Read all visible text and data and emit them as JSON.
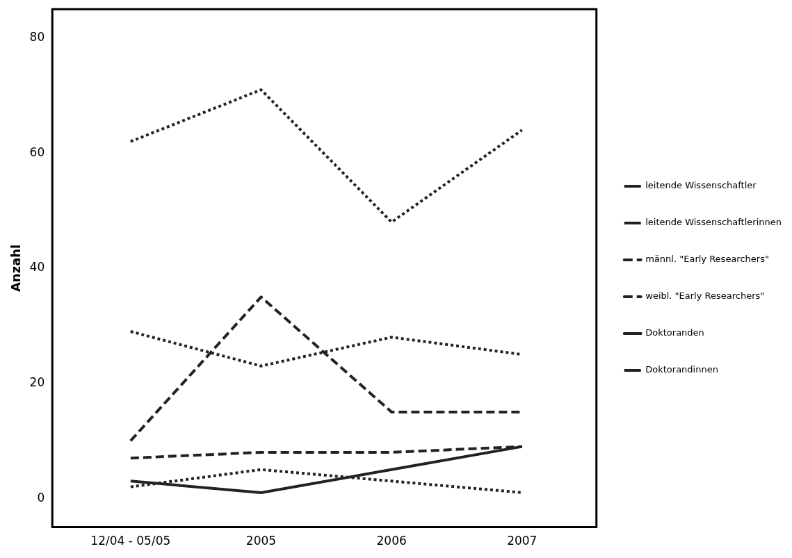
{
  "chart_data": {
    "type": "line",
    "ylabel": "Anzahl",
    "categories": [
      "12/04 - 05/05",
      "2005",
      "2006",
      "2007"
    ],
    "series": [
      {
        "name": "leitende Wissenschaftler",
        "color": "#222222",
        "line_style": "dotted",
        "values": [
          62,
          71,
          48,
          64
        ]
      },
      {
        "name": "leitende Wissenschaftlerinnen",
        "color": "#222222",
        "line_style": "dotted",
        "values": [
          29,
          23,
          28,
          25
        ]
      },
      {
        "name": "männl. \"Early Researchers\"",
        "color": "#222222",
        "line_style": "dashed",
        "values": [
          10,
          35,
          15,
          15
        ]
      },
      {
        "name": "weibl. \"Early Researchers\"",
        "color": "#222222",
        "line_style": "dashed",
        "values": [
          7,
          8,
          8,
          9
        ]
      },
      {
        "name": "Doktoranden",
        "color": "#222222",
        "line_style": "solid",
        "values": [
          3,
          1,
          5,
          9
        ]
      },
      {
        "name": "Doktorandinnen",
        "color": "#222222",
        "line_style": "dotted",
        "values": [
          2,
          5,
          3,
          1
        ]
      }
    ],
    "ylim": [
      -5,
      85
    ],
    "yticks": [
      0,
      20,
      40,
      60,
      80
    ],
    "grid": false,
    "legend": "right",
    "marker": "none"
  }
}
